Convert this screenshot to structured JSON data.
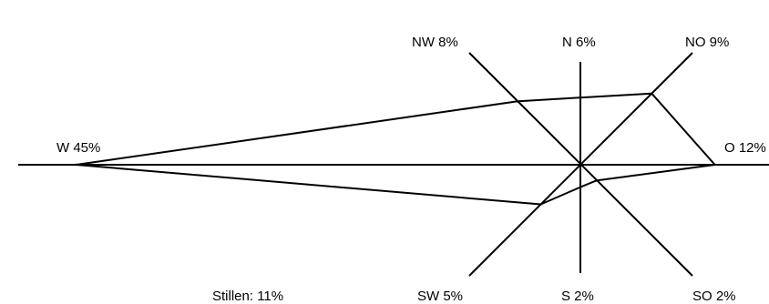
{
  "chart_data": {
    "type": "wind-rose",
    "unit": "%",
    "directions": [
      {
        "key": "N",
        "label": "N 6%",
        "value": 6
      },
      {
        "key": "NO",
        "label": "NO 9%",
        "value": 9
      },
      {
        "key": "O",
        "label": "O 12%",
        "value": 12
      },
      {
        "key": "SO",
        "label": "SO 2%",
        "value": 2
      },
      {
        "key": "S",
        "label": "S 2%",
        "value": 2
      },
      {
        "key": "SW",
        "label": "SW 5%",
        "value": 5
      },
      {
        "key": "W",
        "label": "W 45%",
        "value": 45
      },
      {
        "key": "NW",
        "label": "NW 8%",
        "value": 8
      }
    ],
    "calm": {
      "label": "Stillen: 11%",
      "value": 11
    }
  },
  "colors": {
    "line": "#000000",
    "background": "#ffffff"
  }
}
